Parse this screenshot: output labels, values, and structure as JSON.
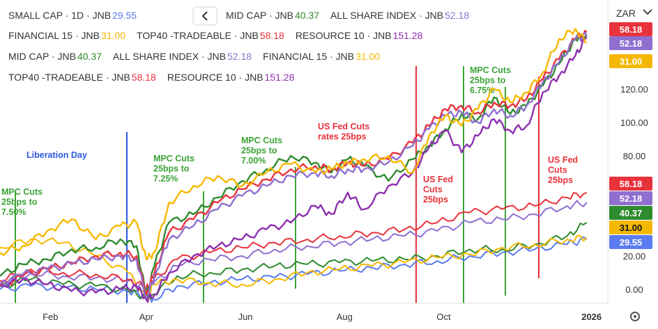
{
  "toolbar": {
    "currency": "ZAR",
    "collapse_icon": "chevron-left-icon",
    "settings_icon": "settings-icon"
  },
  "legend_rows": [
    [
      {
        "name": "SMALL CAP",
        "sep1": "·",
        "interval": "1D",
        "sep2": "·",
        "exchange": "JNB",
        "value": "29.55",
        "color": "#5b7cf0"
      },
      {
        "name": "MID CAP",
        "sep1": "·",
        "exchange": "JNB",
        "value": "40.37",
        "color": "#2e8b2e"
      },
      {
        "name": "ALL SHARE INDEX",
        "sep1": "·",
        "exchange": "JNB",
        "value": "52.18",
        "color": "#8f6fd0"
      }
    ],
    [
      {
        "name": "FINANCIAL 15",
        "sep1": "·",
        "exchange": "JNB",
        "value": "31.00",
        "color": "#f5b800"
      },
      {
        "name": "TOP40 -TRADEABLE",
        "sep1": "·",
        "exchange": "JNB",
        "value": "58.18",
        "color": "#e8323c"
      },
      {
        "name": "RESOURCE 10",
        "sep1": "·",
        "exchange": "JNB",
        "value": "151.28",
        "color": "#8e2fb0"
      }
    ],
    [
      {
        "name": "MID CAP",
        "sep1": "·",
        "exchange": "JNB",
        "value": "40.37",
        "color": "#2e8b2e"
      },
      {
        "name": "ALL SHARE INDEX",
        "sep1": "·",
        "exchange": "JNB",
        "value": "52.18",
        "color": "#8f6fd0"
      },
      {
        "name": "FINANCIAL 15",
        "sep1": "·",
        "exchange": "JNB",
        "value": "31.00",
        "color": "#f5b800"
      }
    ],
    [
      {
        "name": "TOP40 -TRADEABLE",
        "sep1": "·",
        "exchange": "JNB",
        "value": "58.18",
        "color": "#e8323c"
      },
      {
        "name": "RESOURCE 10",
        "sep1": "·",
        "exchange": "JNB",
        "value": "151.28",
        "color": "#8e2fb0"
      }
    ]
  ],
  "chart_data": {
    "type": "line",
    "x_ticks": [
      "Feb",
      "Apr",
      "Jun",
      "Aug",
      "Oct",
      "2026"
    ],
    "x_tick_days": [
      32,
      91,
      152,
      213,
      274,
      365
    ],
    "x_range_days": [
      1,
      375
    ],
    "y_ticks": [
      0,
      20,
      40,
      60,
      80,
      100,
      120
    ],
    "y_tick_labels": [
      "0.00",
      "20.00",
      "",
      "",
      "80.00",
      "100.00",
      "120.00"
    ],
    "ylim": [
      -5,
      160
    ],
    "grid": false,
    "legend_placement": "top-left",
    "series": [
      {
        "name": "SMALL CAP",
        "color": "#5b7cf0",
        "width": 2,
        "x": [
          1,
          20,
          40,
          60,
          80,
          91,
          95,
          110,
          130,
          150,
          170,
          190,
          210,
          230,
          250,
          270,
          290,
          310,
          330,
          350,
          362
        ],
        "y": [
          0,
          2,
          1,
          0,
          -1,
          -4,
          -6,
          2,
          4,
          6,
          7,
          9,
          11,
          13,
          15,
          17,
          20,
          22,
          24,
          27,
          30
        ]
      },
      {
        "name": "MID CAP",
        "color": "#2e8b2e",
        "width": 2,
        "x": [
          1,
          20,
          40,
          60,
          80,
          91,
          95,
          110,
          130,
          150,
          170,
          190,
          210,
          230,
          250,
          270,
          290,
          310,
          330,
          350,
          362
        ],
        "y": [
          2,
          6,
          3,
          2,
          -1,
          -5,
          -3,
          8,
          10,
          12,
          14,
          15,
          16,
          17,
          18,
          20,
          24,
          24,
          27,
          32,
          40
        ]
      },
      {
        "name": "FINANCIAL 15",
        "color": "#f5b800",
        "width": 2,
        "x": [
          1,
          20,
          40,
          60,
          80,
          91,
          95,
          110,
          130,
          150,
          170,
          190,
          210,
          230,
          250,
          270,
          290,
          310,
          330,
          350,
          362
        ],
        "y": [
          25,
          30,
          28,
          20,
          10,
          -6,
          3,
          6,
          4,
          3,
          6,
          10,
          12,
          14,
          16,
          19,
          21,
          25,
          27,
          30,
          31
        ]
      },
      {
        "name": "ALL SHARE INDEX",
        "color": "#8f6fd0",
        "width": 2,
        "x": [
          1,
          20,
          40,
          60,
          80,
          91,
          95,
          110,
          130,
          150,
          170,
          190,
          210,
          230,
          250,
          270,
          290,
          310,
          330,
          350,
          362
        ],
        "y": [
          4,
          10,
          8,
          7,
          5,
          0,
          3,
          14,
          18,
          20,
          24,
          26,
          28,
          30,
          32,
          35,
          40,
          42,
          45,
          50,
          52
        ]
      },
      {
        "name": "TOP40 -TRADEABLE",
        "color": "#e8323c",
        "width": 2,
        "x": [
          1,
          20,
          40,
          60,
          80,
          91,
          95,
          110,
          130,
          150,
          170,
          190,
          210,
          230,
          250,
          270,
          290,
          310,
          330,
          350,
          362
        ],
        "y": [
          5,
          12,
          10,
          9,
          6,
          1,
          5,
          18,
          22,
          25,
          28,
          30,
          32,
          34,
          36,
          40,
          46,
          48,
          50,
          55,
          58
        ]
      },
      {
        "name": "MID CAP (hi)",
        "color": "#2e8b2e",
        "width": 2.4,
        "x": [
          1,
          15,
          30,
          45,
          60,
          75,
          85,
          91,
          96,
          105,
          120,
          135,
          150,
          165,
          180,
          195,
          205,
          215,
          225,
          240,
          255,
          265,
          275,
          285,
          295,
          305,
          315,
          325,
          335,
          345,
          355,
          362
        ],
        "y": [
          8,
          15,
          18,
          24,
          25,
          30,
          26,
          -4,
          14,
          40,
          45,
          55,
          65,
          72,
          80,
          76,
          70,
          78,
          74,
          65,
          78,
          86,
          96,
          105,
          102,
          115,
          105,
          110,
          122,
          135,
          150,
          152
        ]
      },
      {
        "name": "TOP40 -TRADEABLE (hi)",
        "color": "#e8323c",
        "width": 2.4,
        "x": [
          1,
          15,
          30,
          45,
          60,
          75,
          85,
          91,
          96,
          105,
          120,
          135,
          150,
          165,
          180,
          195,
          205,
          215,
          225,
          240,
          255,
          265,
          275,
          285,
          295,
          305,
          315,
          325,
          335,
          345,
          355,
          362
        ],
        "y": [
          2,
          8,
          12,
          16,
          20,
          22,
          20,
          -3,
          10,
          34,
          42,
          52,
          60,
          66,
          72,
          74,
          72,
          76,
          74,
          78,
          88,
          98,
          108,
          110,
          106,
          112,
          110,
          114,
          126,
          138,
          150,
          154
        ]
      },
      {
        "name": "ALL SHARE INDEX (hi)",
        "color": "#8f6fd0",
        "width": 2.4,
        "x": [
          1,
          15,
          30,
          45,
          60,
          75,
          85,
          91,
          96,
          105,
          120,
          135,
          150,
          165,
          180,
          195,
          205,
          215,
          225,
          240,
          255,
          265,
          275,
          285,
          295,
          305,
          315,
          325,
          335,
          345,
          355,
          362
        ],
        "y": [
          3,
          9,
          12,
          15,
          18,
          20,
          18,
          -5,
          8,
          30,
          38,
          48,
          56,
          62,
          68,
          70,
          68,
          72,
          72,
          76,
          86,
          96,
          104,
          106,
          100,
          108,
          104,
          110,
          124,
          136,
          150,
          152
        ]
      },
      {
        "name": "RESOURCE 10",
        "color": "#8e2fb0",
        "width": 2.4,
        "x": [
          1,
          15,
          30,
          45,
          60,
          75,
          85,
          91,
          96,
          105,
          120,
          135,
          150,
          165,
          180,
          195,
          205,
          215,
          225,
          240,
          255,
          265,
          275,
          285,
          295,
          305,
          315,
          325,
          335,
          345,
          355,
          362
        ],
        "y": [
          2,
          6,
          3,
          -1,
          -2,
          0,
          2,
          -6,
          -3,
          10,
          20,
          26,
          30,
          36,
          40,
          50,
          45,
          58,
          48,
          62,
          70,
          85,
          95,
          82,
          92,
          102,
          95,
          98,
          118,
          128,
          140,
          151
        ]
      },
      {
        "name": "FINANCIAL 15 (hi)",
        "color": "#f5b800",
        "width": 2.4,
        "x": [
          1,
          15,
          30,
          45,
          60,
          75,
          85,
          91,
          96,
          105,
          120,
          135,
          150,
          165,
          180,
          195,
          205,
          215,
          225,
          240,
          255,
          265,
          275,
          285,
          295,
          305,
          315,
          325,
          335,
          345,
          355,
          362
        ],
        "y": [
          22,
          26,
          35,
          42,
          30,
          38,
          40,
          18,
          22,
          52,
          62,
          68,
          62,
          70,
          75,
          70,
          72,
          76,
          78,
          80,
          70,
          92,
          104,
          98,
          108,
          120,
          112,
          118,
          130,
          150,
          156,
          148
        ]
      }
    ],
    "events": [
      {
        "label": "Liberation Day",
        "x": 91,
        "color": "#2b59e0"
      },
      {
        "label": "MPC Cuts 25bps to 7.50%",
        "x": 12,
        "color": "#3aa335"
      },
      {
        "label": "MPC Cuts 25bps to 7.25%",
        "x": 146,
        "color": "#3aa335"
      },
      {
        "label": "MPC Cuts 25bps to 7.00%",
        "x": 211,
        "color": "#3aa335"
      },
      {
        "label": "US Fed Cuts rates 25bps",
        "x": 0,
        "color": "#e8323c"
      },
      {
        "label": "US Fed Cuts 25bps",
        "x": 290,
        "color": "#e8323c"
      },
      {
        "label": "MPC Cuts 25bps to 6.75%",
        "x": 323,
        "color": "#3aa335"
      },
      {
        "label": "US Fed Cuts 25bps",
        "x": 337,
        "color": "#e8323c"
      }
    ],
    "price_badges": [
      {
        "value": "58.18",
        "y": 58,
        "color": "#e8323c"
      },
      {
        "value": "52.18",
        "y": 52,
        "color": "#8f6fd0"
      },
      {
        "value": "40.37",
        "y": 40,
        "color": "#2e8b2e"
      },
      {
        "value": "31.00",
        "y": 31,
        "color": "#f5b800"
      },
      {
        "value": "29.55",
        "y": 29.55,
        "color": "#5b7cf0"
      }
    ]
  }
}
